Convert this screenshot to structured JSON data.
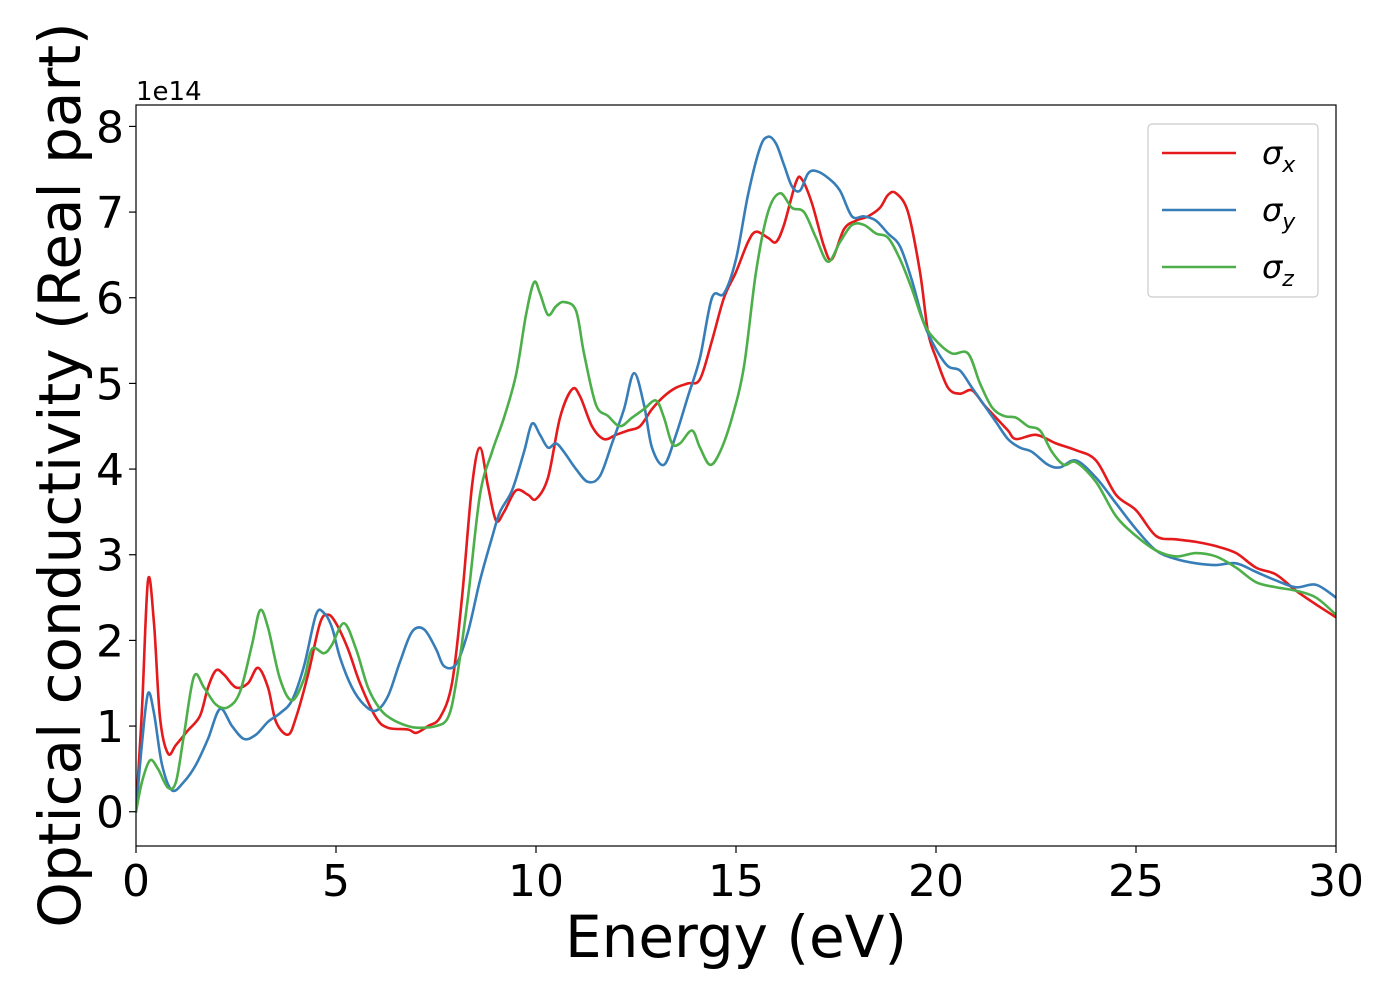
{
  "chart_data": {
    "type": "line",
    "xlabel": "Energy (eV)",
    "ylabel": "Optical conductivity (Real part)",
    "y_offset_label": "1e14",
    "xlim": [
      0,
      30
    ],
    "ylim": [
      -0.4,
      8.25
    ],
    "y_scale_note": "values in units of 1e14",
    "xticks": [
      0,
      5,
      10,
      15,
      20,
      25,
      30
    ],
    "yticks": [
      0,
      1,
      2,
      3,
      4,
      5,
      6,
      7,
      8
    ],
    "grid": false,
    "legend_position": "top-right",
    "series": [
      {
        "name": "σx",
        "symbol": "σ",
        "subscript": "x",
        "color": "#e41a1c",
        "points": [
          [
            0,
            0
          ],
          [
            0.15,
            1.2
          ],
          [
            0.3,
            2.7
          ],
          [
            0.45,
            2.2
          ],
          [
            0.6,
            1.1
          ],
          [
            0.8,
            0.68
          ],
          [
            1.0,
            0.78
          ],
          [
            1.3,
            0.95
          ],
          [
            1.6,
            1.12
          ],
          [
            1.8,
            1.45
          ],
          [
            2.0,
            1.65
          ],
          [
            2.2,
            1.6
          ],
          [
            2.5,
            1.45
          ],
          [
            2.8,
            1.5
          ],
          [
            3.05,
            1.68
          ],
          [
            3.3,
            1.45
          ],
          [
            3.5,
            1.05
          ],
          [
            3.8,
            0.9
          ],
          [
            4.0,
            1.1
          ],
          [
            4.3,
            1.6
          ],
          [
            4.6,
            2.2
          ],
          [
            4.8,
            2.3
          ],
          [
            5.0,
            2.2
          ],
          [
            5.3,
            1.9
          ],
          [
            5.6,
            1.5
          ],
          [
            6.0,
            1.1
          ],
          [
            6.3,
            0.98
          ],
          [
            6.8,
            0.96
          ],
          [
            7.0,
            0.92
          ],
          [
            7.3,
            1.0
          ],
          [
            7.6,
            1.1
          ],
          [
            7.9,
            1.5
          ],
          [
            8.15,
            2.5
          ],
          [
            8.4,
            3.8
          ],
          [
            8.6,
            4.25
          ],
          [
            8.8,
            3.8
          ],
          [
            9.0,
            3.4
          ],
          [
            9.2,
            3.5
          ],
          [
            9.5,
            3.75
          ],
          [
            9.8,
            3.7
          ],
          [
            10.0,
            3.65
          ],
          [
            10.3,
            3.9
          ],
          [
            10.6,
            4.6
          ],
          [
            10.9,
            4.93
          ],
          [
            11.1,
            4.85
          ],
          [
            11.4,
            4.5
          ],
          [
            11.7,
            4.35
          ],
          [
            12.0,
            4.4
          ],
          [
            12.3,
            4.45
          ],
          [
            12.6,
            4.5
          ],
          [
            12.9,
            4.7
          ],
          [
            13.2,
            4.85
          ],
          [
            13.5,
            4.95
          ],
          [
            13.8,
            5.0
          ],
          [
            14.1,
            5.05
          ],
          [
            14.4,
            5.5
          ],
          [
            14.7,
            6.0
          ],
          [
            15.0,
            6.3
          ],
          [
            15.3,
            6.65
          ],
          [
            15.5,
            6.77
          ],
          [
            15.8,
            6.7
          ],
          [
            16.0,
            6.65
          ],
          [
            16.2,
            6.85
          ],
          [
            16.5,
            7.35
          ],
          [
            16.65,
            7.38
          ],
          [
            16.9,
            7.1
          ],
          [
            17.2,
            6.6
          ],
          [
            17.4,
            6.45
          ],
          [
            17.7,
            6.8
          ],
          [
            18.0,
            6.9
          ],
          [
            18.3,
            6.95
          ],
          [
            18.6,
            7.05
          ],
          [
            18.8,
            7.2
          ],
          [
            19.0,
            7.22
          ],
          [
            19.3,
            7.0
          ],
          [
            19.6,
            6.3
          ],
          [
            19.8,
            5.6
          ],
          [
            20.0,
            5.3
          ],
          [
            20.3,
            4.95
          ],
          [
            20.6,
            4.88
          ],
          [
            20.9,
            4.92
          ],
          [
            21.2,
            4.75
          ],
          [
            21.5,
            4.6
          ],
          [
            21.8,
            4.45
          ],
          [
            22.0,
            4.35
          ],
          [
            22.5,
            4.4
          ],
          [
            23.0,
            4.3
          ],
          [
            23.5,
            4.22
          ],
          [
            24.0,
            4.1
          ],
          [
            24.5,
            3.7
          ],
          [
            25.0,
            3.52
          ],
          [
            25.5,
            3.22
          ],
          [
            26.0,
            3.18
          ],
          [
            26.5,
            3.15
          ],
          [
            27.0,
            3.1
          ],
          [
            27.5,
            3.02
          ],
          [
            28.0,
            2.85
          ],
          [
            28.5,
            2.77
          ],
          [
            29.0,
            2.58
          ],
          [
            29.5,
            2.42
          ],
          [
            30.0,
            2.27
          ]
        ]
      },
      {
        "name": "σy",
        "symbol": "σ",
        "subscript": "y",
        "color": "#377eb8",
        "points": [
          [
            0,
            0
          ],
          [
            0.15,
            0.8
          ],
          [
            0.3,
            1.38
          ],
          [
            0.45,
            1.15
          ],
          [
            0.65,
            0.55
          ],
          [
            0.9,
            0.25
          ],
          [
            1.2,
            0.35
          ],
          [
            1.5,
            0.55
          ],
          [
            1.8,
            0.85
          ],
          [
            2.1,
            1.2
          ],
          [
            2.4,
            1.0
          ],
          [
            2.7,
            0.85
          ],
          [
            3.0,
            0.9
          ],
          [
            3.3,
            1.05
          ],
          [
            3.6,
            1.15
          ],
          [
            3.9,
            1.3
          ],
          [
            4.2,
            1.7
          ],
          [
            4.5,
            2.3
          ],
          [
            4.7,
            2.32
          ],
          [
            4.9,
            2.15
          ],
          [
            5.1,
            1.8
          ],
          [
            5.4,
            1.45
          ],
          [
            5.7,
            1.25
          ],
          [
            6.0,
            1.18
          ],
          [
            6.3,
            1.35
          ],
          [
            6.6,
            1.75
          ],
          [
            6.9,
            2.1
          ],
          [
            7.2,
            2.13
          ],
          [
            7.5,
            1.9
          ],
          [
            7.7,
            1.7
          ],
          [
            8.0,
            1.72
          ],
          [
            8.3,
            2.1
          ],
          [
            8.6,
            2.7
          ],
          [
            8.9,
            3.2
          ],
          [
            9.1,
            3.5
          ],
          [
            9.4,
            3.75
          ],
          [
            9.7,
            4.2
          ],
          [
            9.9,
            4.53
          ],
          [
            10.1,
            4.4
          ],
          [
            10.3,
            4.25
          ],
          [
            10.5,
            4.3
          ],
          [
            10.7,
            4.2
          ],
          [
            11.0,
            4.0
          ],
          [
            11.3,
            3.85
          ],
          [
            11.6,
            3.92
          ],
          [
            11.9,
            4.3
          ],
          [
            12.2,
            4.7
          ],
          [
            12.45,
            5.12
          ],
          [
            12.7,
            4.75
          ],
          [
            12.9,
            4.25
          ],
          [
            13.2,
            4.05
          ],
          [
            13.5,
            4.4
          ],
          [
            13.8,
            4.85
          ],
          [
            14.1,
            5.3
          ],
          [
            14.4,
            6.0
          ],
          [
            14.7,
            6.05
          ],
          [
            15.0,
            6.45
          ],
          [
            15.3,
            7.2
          ],
          [
            15.6,
            7.75
          ],
          [
            15.8,
            7.88
          ],
          [
            16.0,
            7.8
          ],
          [
            16.2,
            7.55
          ],
          [
            16.4,
            7.3
          ],
          [
            16.6,
            7.25
          ],
          [
            16.8,
            7.45
          ],
          [
            17.0,
            7.48
          ],
          [
            17.3,
            7.4
          ],
          [
            17.6,
            7.25
          ],
          [
            17.9,
            6.95
          ],
          [
            18.2,
            6.95
          ],
          [
            18.5,
            6.9
          ],
          [
            18.8,
            6.75
          ],
          [
            19.1,
            6.6
          ],
          [
            19.4,
            6.2
          ],
          [
            19.7,
            5.7
          ],
          [
            20.0,
            5.4
          ],
          [
            20.3,
            5.2
          ],
          [
            20.6,
            5.15
          ],
          [
            20.9,
            4.95
          ],
          [
            21.2,
            4.75
          ],
          [
            21.5,
            4.55
          ],
          [
            21.8,
            4.35
          ],
          [
            22.1,
            4.25
          ],
          [
            22.4,
            4.2
          ],
          [
            22.8,
            4.05
          ],
          [
            23.1,
            4.02
          ],
          [
            23.5,
            4.1
          ],
          [
            24.0,
            3.9
          ],
          [
            24.5,
            3.6
          ],
          [
            25.0,
            3.3
          ],
          [
            25.5,
            3.05
          ],
          [
            26.0,
            2.95
          ],
          [
            26.5,
            2.9
          ],
          [
            27.0,
            2.88
          ],
          [
            27.5,
            2.9
          ],
          [
            28.0,
            2.8
          ],
          [
            28.5,
            2.7
          ],
          [
            29.0,
            2.62
          ],
          [
            29.5,
            2.65
          ],
          [
            30.0,
            2.5
          ]
        ]
      },
      {
        "name": "σz",
        "symbol": "σ",
        "subscript": "z",
        "color": "#4daf4a",
        "points": [
          [
            0,
            0
          ],
          [
            0.15,
            0.35
          ],
          [
            0.35,
            0.6
          ],
          [
            0.55,
            0.5
          ],
          [
            0.8,
            0.28
          ],
          [
            1.0,
            0.35
          ],
          [
            1.2,
            0.9
          ],
          [
            1.45,
            1.58
          ],
          [
            1.7,
            1.45
          ],
          [
            2.0,
            1.25
          ],
          [
            2.3,
            1.22
          ],
          [
            2.6,
            1.4
          ],
          [
            2.9,
            1.95
          ],
          [
            3.1,
            2.35
          ],
          [
            3.3,
            2.15
          ],
          [
            3.6,
            1.55
          ],
          [
            3.9,
            1.3
          ],
          [
            4.2,
            1.55
          ],
          [
            4.4,
            1.9
          ],
          [
            4.7,
            1.85
          ],
          [
            4.9,
            1.95
          ],
          [
            5.2,
            2.2
          ],
          [
            5.5,
            1.9
          ],
          [
            5.8,
            1.45
          ],
          [
            6.1,
            1.2
          ],
          [
            6.4,
            1.08
          ],
          [
            6.8,
            1.0
          ],
          [
            7.1,
            0.98
          ],
          [
            7.5,
            1.0
          ],
          [
            7.8,
            1.1
          ],
          [
            8.0,
            1.5
          ],
          [
            8.3,
            2.5
          ],
          [
            8.6,
            3.7
          ],
          [
            8.9,
            4.2
          ],
          [
            9.2,
            4.6
          ],
          [
            9.5,
            5.1
          ],
          [
            9.75,
            5.8
          ],
          [
            9.95,
            6.18
          ],
          [
            10.1,
            6.05
          ],
          [
            10.3,
            5.8
          ],
          [
            10.5,
            5.9
          ],
          [
            10.7,
            5.95
          ],
          [
            11.0,
            5.85
          ],
          [
            11.2,
            5.35
          ],
          [
            11.5,
            4.75
          ],
          [
            11.8,
            4.62
          ],
          [
            12.1,
            4.5
          ],
          [
            12.4,
            4.6
          ],
          [
            12.7,
            4.7
          ],
          [
            13.0,
            4.8
          ],
          [
            13.2,
            4.6
          ],
          [
            13.4,
            4.3
          ],
          [
            13.6,
            4.3
          ],
          [
            13.9,
            4.45
          ],
          [
            14.1,
            4.25
          ],
          [
            14.35,
            4.05
          ],
          [
            14.6,
            4.2
          ],
          [
            14.9,
            4.6
          ],
          [
            15.2,
            5.2
          ],
          [
            15.5,
            6.3
          ],
          [
            15.8,
            7.0
          ],
          [
            16.1,
            7.22
          ],
          [
            16.4,
            7.05
          ],
          [
            16.7,
            7.0
          ],
          [
            17.0,
            6.7
          ],
          [
            17.3,
            6.42
          ],
          [
            17.6,
            6.65
          ],
          [
            17.9,
            6.85
          ],
          [
            18.2,
            6.85
          ],
          [
            18.5,
            6.75
          ],
          [
            18.8,
            6.7
          ],
          [
            19.1,
            6.45
          ],
          [
            19.4,
            6.1
          ],
          [
            19.7,
            5.7
          ],
          [
            20.0,
            5.5
          ],
          [
            20.4,
            5.35
          ],
          [
            20.8,
            5.35
          ],
          [
            21.1,
            5.0
          ],
          [
            21.4,
            4.72
          ],
          [
            21.7,
            4.62
          ],
          [
            22.0,
            4.6
          ],
          [
            22.3,
            4.5
          ],
          [
            22.6,
            4.45
          ],
          [
            22.9,
            4.2
          ],
          [
            23.2,
            4.05
          ],
          [
            23.5,
            4.08
          ],
          [
            24.0,
            3.85
          ],
          [
            24.5,
            3.45
          ],
          [
            25.0,
            3.22
          ],
          [
            25.5,
            3.05
          ],
          [
            26.0,
            2.98
          ],
          [
            26.5,
            3.02
          ],
          [
            27.0,
            2.98
          ],
          [
            27.5,
            2.85
          ],
          [
            28.0,
            2.68
          ],
          [
            28.5,
            2.62
          ],
          [
            29.0,
            2.58
          ],
          [
            29.5,
            2.5
          ],
          [
            30.0,
            2.3
          ]
        ]
      }
    ]
  }
}
